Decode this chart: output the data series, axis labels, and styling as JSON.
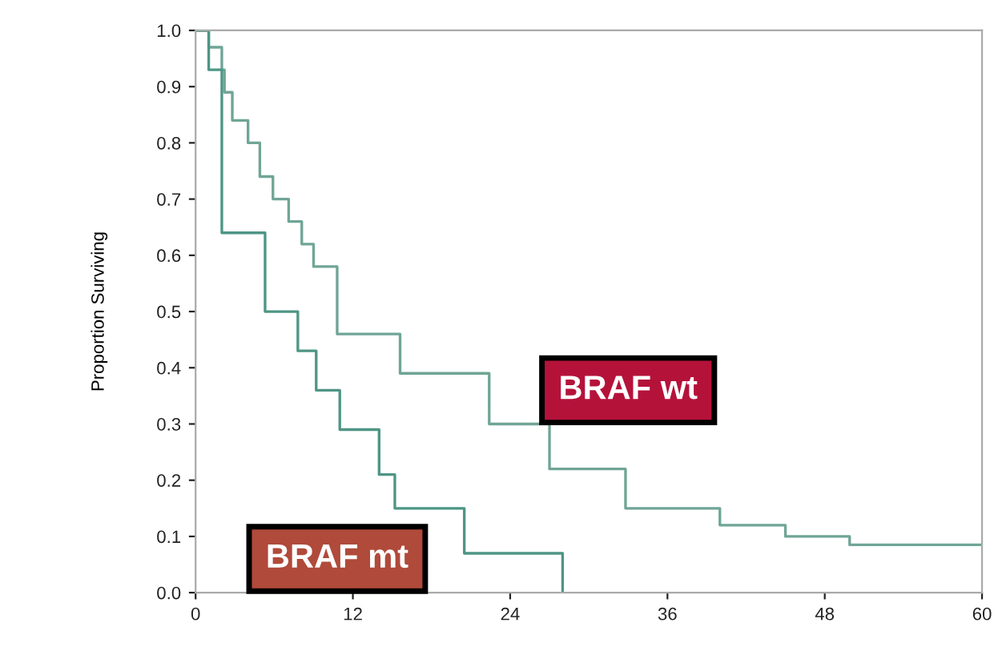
{
  "chart_data": {
    "type": "step",
    "ylabel": "Proportion Surviving",
    "xlim": [
      0,
      60
    ],
    "xticks": [
      0,
      12,
      24,
      36,
      48,
      60
    ],
    "ylim": [
      0,
      1
    ],
    "yticks": [
      {
        "value": 0,
        "label": "0.0"
      },
      0.1,
      0.2,
      0.3,
      0.4,
      0.5,
      0.6,
      0.7,
      0.8,
      0.9,
      {
        "value": 1,
        "label": "1.0"
      }
    ],
    "grid": false,
    "legend": false,
    "series": [
      {
        "name": "BRAF wt",
        "color": "#6fa596",
        "x": [
          0,
          1,
          2,
          2.2,
          2.8,
          4.0,
          4.9,
          5.9,
          7.1,
          8.1,
          9.0,
          10.8,
          15.6,
          22.4,
          27,
          32.8,
          40,
          45,
          49.9,
          60
        ],
        "values": [
          1.0,
          0.97,
          0.93,
          0.89,
          0.84,
          0.8,
          0.74,
          0.7,
          0.66,
          0.62,
          0.58,
          0.46,
          0.39,
          0.3,
          0.22,
          0.15,
          0.12,
          0.1,
          0.085,
          0.085
        ]
      },
      {
        "name": "BRAF mt",
        "color": "#4e9585",
        "x": [
          0,
          1,
          2,
          5.3,
          7.8,
          9.2,
          11,
          14,
          15.2,
          20.5,
          28
        ],
        "values": [
          1.0,
          0.93,
          0.64,
          0.5,
          0.43,
          0.36,
          0.29,
          0.21,
          0.15,
          0.07,
          0.0
        ]
      }
    ]
  }
}
